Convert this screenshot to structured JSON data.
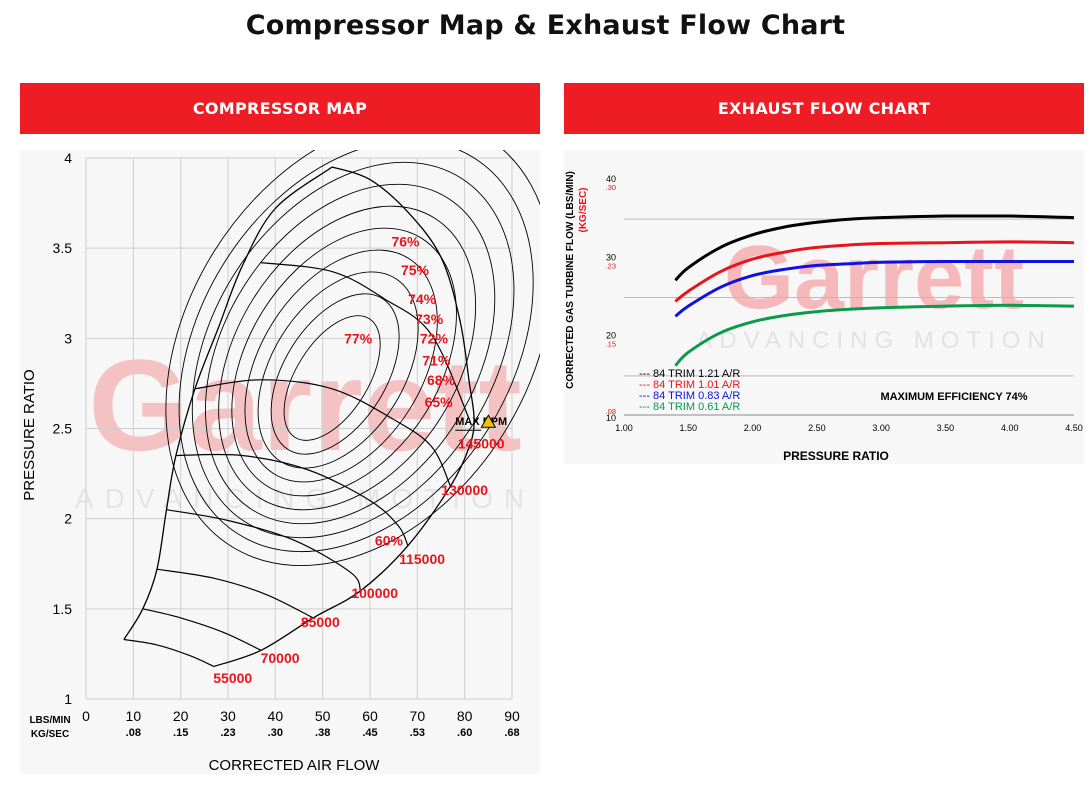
{
  "page": {
    "title": "Compressor Map & Exhaust Flow Chart"
  },
  "panels": {
    "left_header": "COMPRESSOR MAP",
    "right_header": "EXHAUST FLOW CHART"
  },
  "colors": {
    "accent": "#ee1c25",
    "map_label": "#e8141c",
    "watermark": "#f5b9bb",
    "warning": "#f2c200"
  },
  "chart_data": [
    {
      "type": "line",
      "id": "compressor_map",
      "title": "COMPRESSOR MAP",
      "xlabel": "CORRECTED AIR FLOW",
      "ylabel": "PRESSURE RATIO",
      "x_units_label_1": "LBS/MIN",
      "x_units_label_2": "KG/SEC",
      "xlim": [
        0,
        90
      ],
      "ylim": [
        1,
        4
      ],
      "x_ticks": [
        "0",
        "10",
        "20",
        "30",
        "40",
        "50",
        "60",
        "70",
        "80",
        "90"
      ],
      "x_ticks_secondary": [
        "",
        ".08",
        ".15",
        ".23",
        ".30",
        ".38",
        ".45",
        ".53",
        ".60",
        ".68"
      ],
      "y_ticks": [
        "1",
        "1.5",
        "2",
        "2.5",
        "3",
        "3.5",
        "4"
      ],
      "grid": true,
      "watermark": [
        "Garrett",
        "ADVANCING MOTION"
      ],
      "max_rpm_label": "MAX RPM",
      "efficiency_labels": [
        {
          "text": "76%",
          "x": 67.5,
          "y": 3.51
        },
        {
          "text": "75%",
          "x": 69.5,
          "y": 3.35
        },
        {
          "text": "74%",
          "x": 71,
          "y": 3.19
        },
        {
          "text": "73%",
          "x": 72.5,
          "y": 3.08
        },
        {
          "text": "77%",
          "x": 57.5,
          "y": 2.97
        },
        {
          "text": "72%",
          "x": 73.5,
          "y": 2.97
        },
        {
          "text": "71%",
          "x": 74,
          "y": 2.85
        },
        {
          "text": "68%",
          "x": 75,
          "y": 2.74
        },
        {
          "text": "65%",
          "x": 74.5,
          "y": 2.62
        },
        {
          "text": "60%",
          "x": 64,
          "y": 1.85
        }
      ],
      "speed_lines": [
        {
          "rpm": "55000",
          "points": [
            [
              8,
              1.33
            ],
            [
              15,
              1.3
            ],
            [
              22,
              1.24
            ],
            [
              27,
              1.18
            ]
          ],
          "label_x": 31,
          "label_y": 1.09
        },
        {
          "rpm": "70000",
          "points": [
            [
              12,
              1.5
            ],
            [
              20,
              1.45
            ],
            [
              29,
              1.37
            ],
            [
              37,
              1.27
            ]
          ],
          "label_x": 41,
          "label_y": 1.2
        },
        {
          "rpm": "85000",
          "points": [
            [
              15,
              1.72
            ],
            [
              27,
              1.67
            ],
            [
              38,
              1.58
            ],
            [
              48,
              1.45
            ]
          ],
          "label_x": 49.5,
          "label_y": 1.4
        },
        {
          "rpm": "100000",
          "points": [
            [
              17,
              2.05
            ],
            [
              30,
              1.99
            ],
            [
              44,
              1.88
            ],
            [
              56,
              1.7
            ],
            [
              58,
              1.6
            ]
          ],
          "label_x": 61,
          "label_y": 1.56
        },
        {
          "rpm": "115000",
          "points": [
            [
              19,
              2.35
            ],
            [
              33,
              2.35
            ],
            [
              47,
              2.27
            ],
            [
              60,
              2.1
            ],
            [
              66,
              1.96
            ],
            [
              68,
              1.85
            ]
          ],
          "label_x": 71,
          "label_y": 1.75
        },
        {
          "rpm": "130000",
          "points": [
            [
              23,
              2.72
            ],
            [
              37,
              2.77
            ],
            [
              52,
              2.72
            ],
            [
              65,
              2.55
            ],
            [
              73,
              2.4
            ],
            [
              77,
              2.18
            ]
          ],
          "label_x": 80,
          "label_y": 2.13
        },
        {
          "rpm": "145000",
          "points": [
            [
              37,
              3.42
            ],
            [
              52,
              3.37
            ],
            [
              63,
              3.22
            ],
            [
              73,
              3.02
            ],
            [
              81,
              2.55
            ]
          ],
          "label_x": 83.5,
          "label_y": 2.39
        }
      ],
      "surge_line": [
        [
          8,
          1.33
        ],
        [
          12,
          1.5
        ],
        [
          15,
          1.72
        ],
        [
          17,
          2.05
        ],
        [
          19,
          2.35
        ],
        [
          23,
          2.72
        ],
        [
          28,
          3.06
        ],
        [
          33,
          3.4
        ],
        [
          40,
          3.72
        ],
        [
          52,
          3.95
        ]
      ],
      "choke_line": [
        [
          52,
          3.95
        ],
        [
          60,
          3.88
        ],
        [
          68,
          3.7
        ],
        [
          75,
          3.45
        ],
        [
          79,
          3.1
        ],
        [
          81,
          2.75
        ],
        [
          82,
          2.55
        ],
        [
          81,
          2.4
        ],
        [
          77,
          2.18
        ],
        [
          68,
          1.85
        ],
        [
          58,
          1.6
        ],
        [
          48,
          1.45
        ],
        [
          37,
          1.27
        ],
        [
          27,
          1.18
        ]
      ]
    },
    {
      "type": "line",
      "id": "exhaust_flow_chart",
      "title": "EXHAUST FLOW CHART",
      "xlabel": "PRESSURE RATIO",
      "ylabel": "CORRECTED GAS TURBINE FLOW (LBS/MIN)",
      "ylabel_secondary": "(KG/SEC)",
      "xlim": [
        1.0,
        4.5
      ],
      "ylim": [
        10,
        40
      ],
      "x_ticks": [
        "1.00",
        "1.50",
        "2.00",
        "2.50",
        "3.00",
        "3.50",
        "4.00",
        "4.50"
      ],
      "y_ticks": [
        "10",
        "20",
        "30",
        "40"
      ],
      "y_ticks_secondary": [
        ".08",
        ".15",
        ".23",
        ".30"
      ],
      "annotation": "MAXIMUM EFFICIENCY 74%",
      "watermark": [
        "Garrett",
        "ADVANCING MOTION"
      ],
      "legend_position": "bottom-left",
      "x": [
        1.4,
        1.5,
        1.75,
        2.0,
        2.25,
        2.5,
        2.75,
        3.0,
        3.5,
        4.0,
        4.5
      ],
      "series": [
        {
          "name": "84 TRIM 1.21 A/R",
          "color": "#000000",
          "values": [
            27.2,
            28.8,
            31.4,
            33.0,
            34.0,
            34.6,
            35.0,
            35.2,
            35.4,
            35.4,
            35.2
          ]
        },
        {
          "name": "84 TRIM 1.01 A/R",
          "color": "#e8141c",
          "values": [
            24.5,
            25.8,
            28.3,
            29.9,
            30.8,
            31.4,
            31.7,
            31.9,
            32.0,
            32.1,
            32.0
          ]
        },
        {
          "name": "84 TRIM 0.83 A/R",
          "color": "#1010e0",
          "values": [
            22.6,
            23.9,
            26.3,
            27.8,
            28.6,
            29.1,
            29.3,
            29.5,
            29.6,
            29.6,
            29.6
          ]
        },
        {
          "name": "84 TRIM 0.61 A/R",
          "color": "#0a9a4a",
          "values": [
            16.3,
            18.0,
            20.5,
            21.9,
            22.7,
            23.2,
            23.5,
            23.7,
            23.9,
            24.0,
            23.9
          ]
        }
      ]
    }
  ]
}
